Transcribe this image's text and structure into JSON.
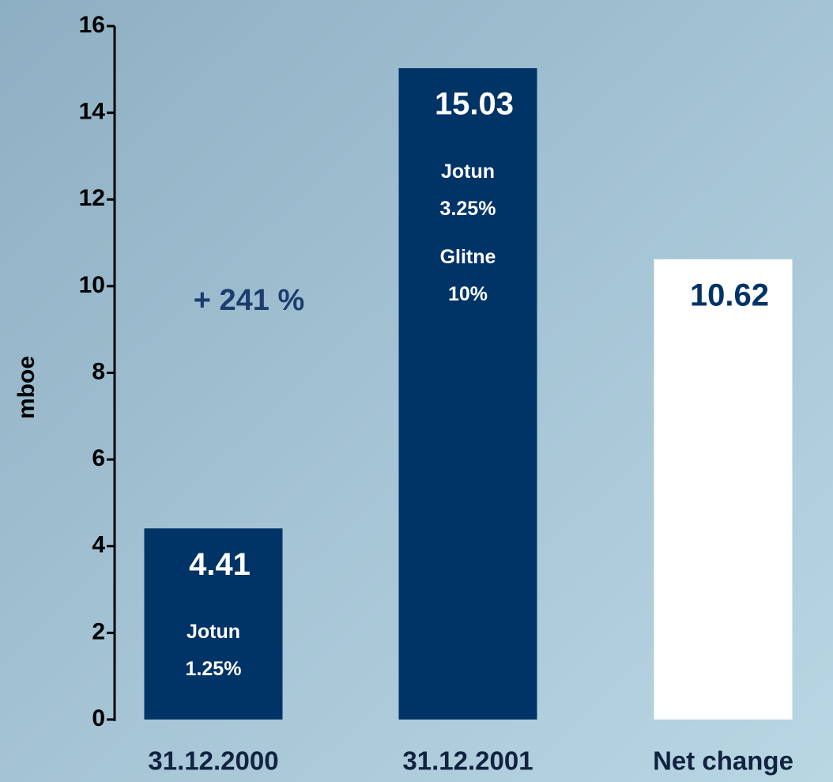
{
  "chart_data": {
    "type": "bar",
    "y_label": "mboe",
    "annotation": "+ 241 %",
    "categories": [
      "31.12.2000",
      "31.12.2001",
      "Net change"
    ],
    "values": [
      4.41,
      15.03,
      10.62
    ],
    "colors": [
      "#003366",
      "#003366",
      "#ffffff"
    ],
    "bar_notes": [
      [
        "Jotun",
        "1.25%"
      ],
      [
        "Jotun",
        "3.25%",
        "Glitne",
        "10%"
      ],
      []
    ],
    "ylim": [
      0,
      16
    ],
    "yticks": [
      0,
      2,
      4,
      6,
      8,
      10,
      12,
      14,
      16
    ]
  }
}
